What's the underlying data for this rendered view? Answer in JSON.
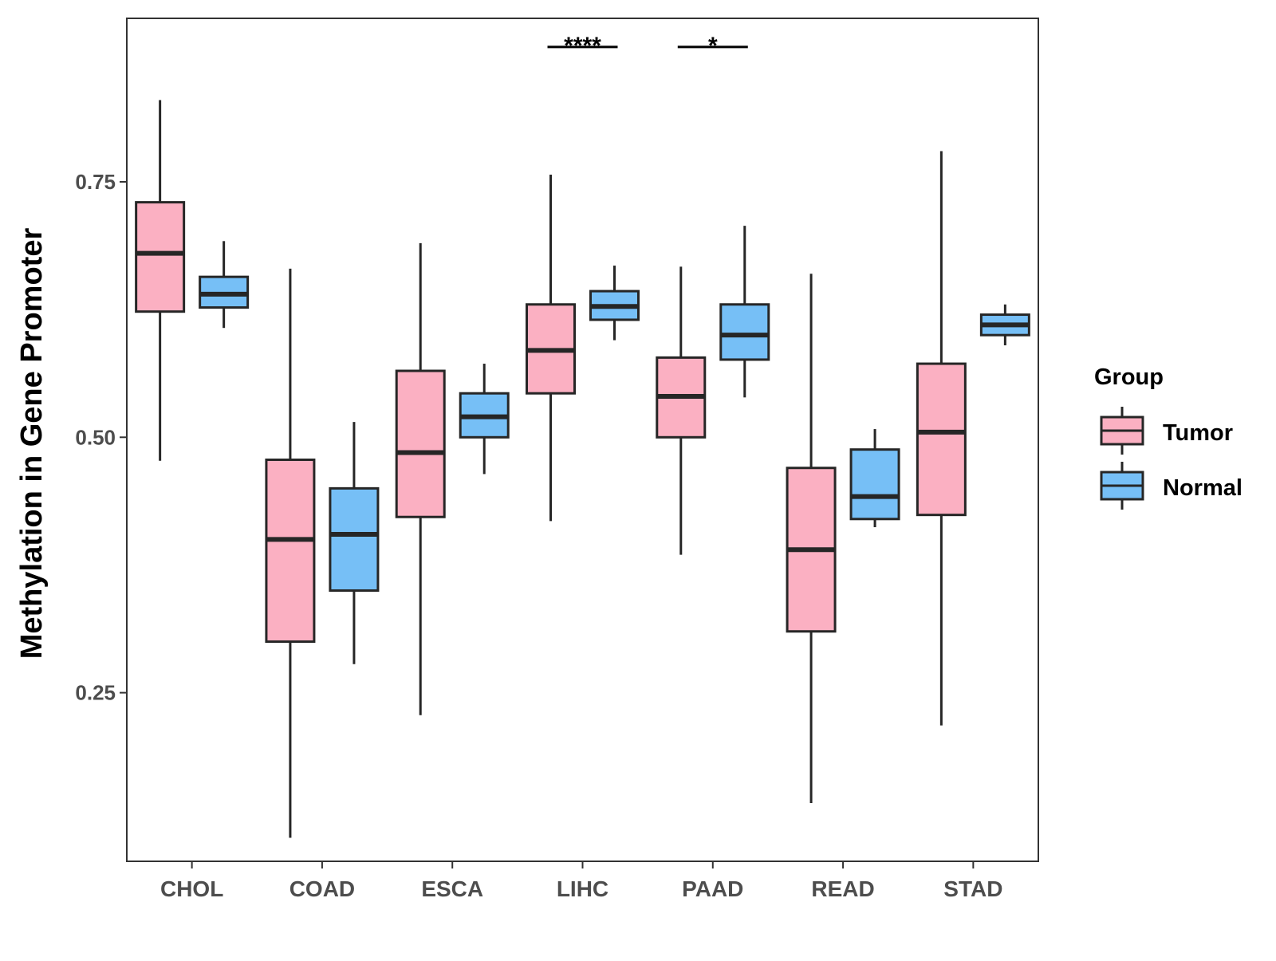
{
  "chart_data": {
    "type": "boxplot",
    "title": "",
    "xlabel": "",
    "ylabel": "Methylation in Gene Promoter",
    "ylim": [
      0.085,
      0.91
    ],
    "yticks": [
      0.25,
      0.5,
      0.75
    ],
    "ytick_labels": [
      "0.25",
      "0.50",
      "0.75"
    ],
    "grid": false,
    "legend_position": "right",
    "categories": [
      "CHOL",
      "COAD",
      "ESCA",
      "LIHC",
      "PAAD",
      "READ",
      "STAD"
    ],
    "series": [
      {
        "name": "Tumor",
        "color": "#fbb0c2",
        "boxes": [
          {
            "min": 0.477,
            "q1": 0.623,
            "median": 0.68,
            "q3": 0.73,
            "max": 0.83
          },
          {
            "min": 0.108,
            "q1": 0.3,
            "median": 0.4,
            "q3": 0.478,
            "max": 0.665
          },
          {
            "min": 0.228,
            "q1": 0.422,
            "median": 0.485,
            "q3": 0.565,
            "max": 0.69
          },
          {
            "min": 0.418,
            "q1": 0.543,
            "median": 0.585,
            "q3": 0.63,
            "max": 0.757
          },
          {
            "min": 0.385,
            "q1": 0.5,
            "median": 0.54,
            "q3": 0.578,
            "max": 0.667
          },
          {
            "min": 0.142,
            "q1": 0.31,
            "median": 0.39,
            "q3": 0.47,
            "max": 0.66
          },
          {
            "min": 0.218,
            "q1": 0.424,
            "median": 0.505,
            "q3": 0.572,
            "max": 0.78
          }
        ]
      },
      {
        "name": "Normal",
        "color": "#76bff6",
        "boxes": [
          {
            "min": 0.607,
            "q1": 0.627,
            "median": 0.64,
            "q3": 0.657,
            "max": 0.692
          },
          {
            "min": 0.278,
            "q1": 0.35,
            "median": 0.405,
            "q3": 0.45,
            "max": 0.515
          },
          {
            "min": 0.464,
            "q1": 0.5,
            "median": 0.52,
            "q3": 0.543,
            "max": 0.572
          },
          {
            "min": 0.595,
            "q1": 0.615,
            "median": 0.628,
            "q3": 0.643,
            "max": 0.668
          },
          {
            "min": 0.539,
            "q1": 0.576,
            "median": 0.6,
            "q3": 0.63,
            "max": 0.707
          },
          {
            "min": 0.412,
            "q1": 0.42,
            "median": 0.442,
            "q3": 0.488,
            "max": 0.508
          },
          {
            "min": 0.59,
            "q1": 0.6,
            "median": 0.61,
            "q3": 0.62,
            "max": 0.63
          }
        ]
      }
    ],
    "significance": [
      {
        "category": "LIHC",
        "label": "****",
        "y": 0.882
      },
      {
        "category": "PAAD",
        "label": "*",
        "y": 0.882
      }
    ],
    "legend": {
      "title": "Group",
      "entries": [
        "Tumor",
        "Normal"
      ]
    }
  }
}
